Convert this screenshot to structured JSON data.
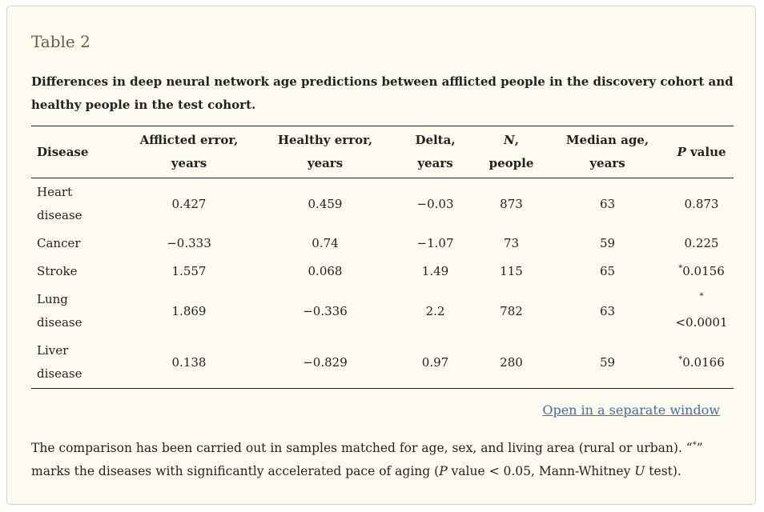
{
  "title": "Table 2",
  "caption": "Differences in deep neural network age predictions between afflicted people in the discovery cohort and healthy people in the test cohort.",
  "table": {
    "header": [
      [
        {
          "text": "Disease"
        }
      ],
      [
        {
          "text": "Afflicted error, years"
        }
      ],
      [
        {
          "text": "Healthy error, years"
        }
      ],
      [
        {
          "text": "Delta, years"
        }
      ],
      [
        {
          "text": "N",
          "italic": true
        },
        {
          "text": ", people"
        }
      ],
      [
        {
          "text": "Median age, years"
        }
      ],
      [
        {
          "text": "P",
          "italic": true
        },
        {
          "text": " value"
        }
      ]
    ],
    "rows": [
      [
        "Heart disease",
        "0.427",
        "0.459",
        "−0.03",
        "873",
        "63",
        {
          "text": "0.873"
        }
      ],
      [
        "Cancer",
        "−0.333",
        "0.74",
        "−1.07",
        "73",
        "59",
        {
          "text": "0.225"
        }
      ],
      [
        "Stroke",
        "1.557",
        "0.068",
        "1.49",
        "115",
        "65",
        {
          "note": "*",
          "text": "0.0156"
        }
      ],
      [
        "Lung disease",
        "1.869",
        "−0.336",
        "2.2",
        "782",
        "63",
        {
          "note": "*",
          "text": "<0.0001"
        }
      ],
      [
        "Liver disease",
        "0.138",
        "−0.829",
        "0.97",
        "280",
        "59",
        {
          "note": "*",
          "text": "0.0166"
        }
      ]
    ]
  },
  "link": "Open in a separate window",
  "footnote": [
    {
      "text": "The comparison has been carried out in samples matched for age, sex, and living area (rural or urban). “"
    },
    {
      "text": "*",
      "sup": true
    },
    {
      "text": "” marks the diseases with significantly accelerated pace of aging ("
    },
    {
      "text": "P",
      "italic": true
    },
    {
      "text": " value < 0.05, Mann-Whitney "
    },
    {
      "text": "U",
      "italic": true
    },
    {
      "text": " test)."
    }
  ]
}
